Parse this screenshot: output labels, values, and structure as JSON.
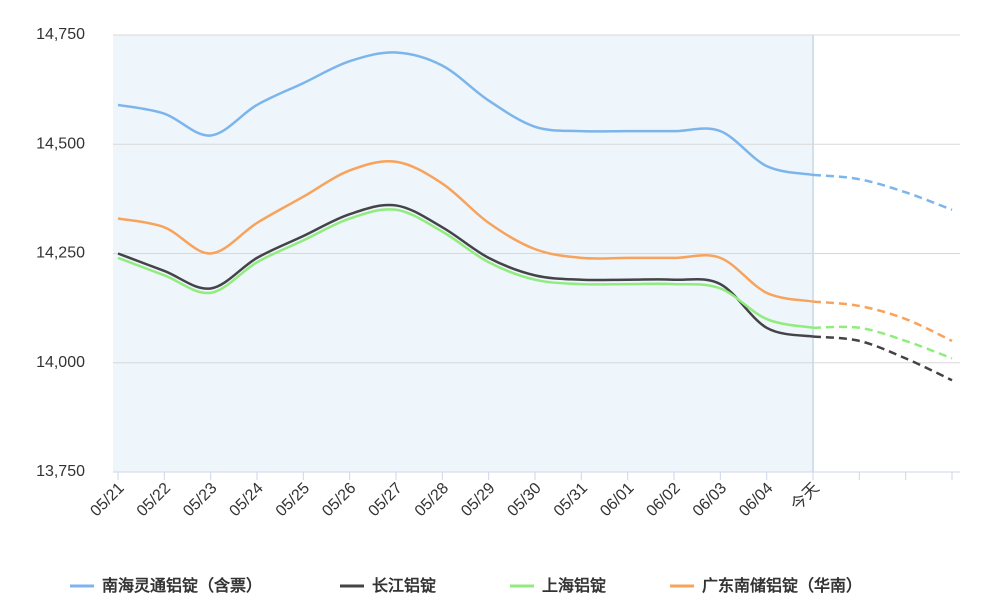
{
  "chart_data": {
    "type": "line",
    "categories": [
      "05/21",
      "05/22",
      "05/23",
      "05/24",
      "05/25",
      "05/26",
      "05/27",
      "05/28",
      "05/29",
      "05/30",
      "05/31",
      "06/01",
      "06/02",
      "06/03",
      "06/04",
      "今天",
      null,
      null,
      null
    ],
    "series": [
      {
        "name": "南海灵通铝锭（含票）",
        "color": "#7cb5ec",
        "values": [
          14590,
          14570,
          14520,
          14590,
          14640,
          14690,
          14710,
          14680,
          14600,
          14540,
          14530,
          14530,
          14530,
          14530,
          14450,
          14430,
          14420,
          14390,
          14350
        ]
      },
      {
        "name": "长江铝锭",
        "color": "#434348",
        "values": [
          14250,
          14210,
          14170,
          14240,
          14290,
          14340,
          14360,
          14310,
          14240,
          14200,
          14190,
          14190,
          14190,
          14180,
          14080,
          14060,
          14050,
          14010,
          13960
        ]
      },
      {
        "name": "上海铝锭",
        "color": "#90ed7d",
        "values": [
          14240,
          14200,
          14160,
          14230,
          14280,
          14330,
          14350,
          14300,
          14230,
          14190,
          14180,
          14180,
          14180,
          14170,
          14100,
          14080,
          14080,
          14050,
          14010
        ]
      },
      {
        "name": "广东南储铝锭（华南）",
        "color": "#f7a35c",
        "values": [
          14330,
          14310,
          14250,
          14320,
          14380,
          14440,
          14460,
          14410,
          14320,
          14260,
          14240,
          14240,
          14240,
          14240,
          14160,
          14140,
          14130,
          14100,
          14050
        ]
      }
    ],
    "ylim": [
      13750,
      14750
    ],
    "yticks": [
      {
        "value": 13750,
        "label": "13,750"
      },
      {
        "value": 14000,
        "label": "14,000"
      },
      {
        "value": 14250,
        "label": "14,250"
      },
      {
        "value": 14500,
        "label": "14,500"
      },
      {
        "value": 14750,
        "label": "14,750"
      }
    ],
    "grid": true,
    "legend": "bottom"
  }
}
